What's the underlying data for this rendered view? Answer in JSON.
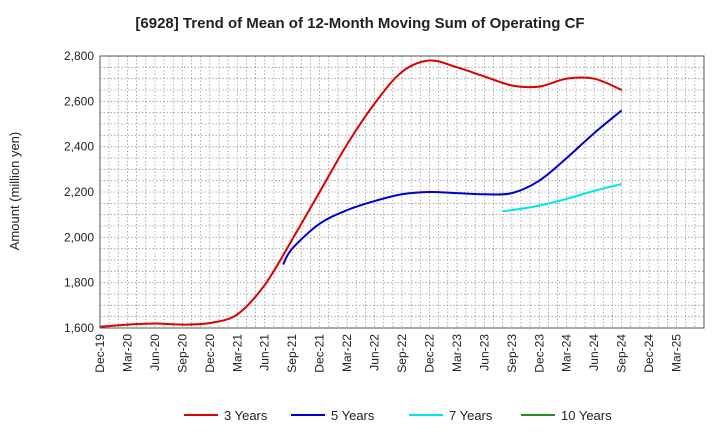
{
  "chart_data": {
    "type": "line",
    "title": "[6928]  Trend of Mean of 12-Month Moving Sum of Operating CF",
    "xlabel": "",
    "ylabel": "Amount (million yen)",
    "ylim": [
      1600,
      2800
    ],
    "yticks": [
      1600,
      1800,
      2000,
      2200,
      2400,
      2600,
      2800
    ],
    "ytick_labels": [
      "1,600",
      "1,800",
      "2,000",
      "2,200",
      "2,400",
      "2,600",
      "2,800"
    ],
    "categories": [
      "Dec-19",
      "Mar-20",
      "Jun-20",
      "Sep-20",
      "Dec-20",
      "Mar-21",
      "Jun-21",
      "Sep-21",
      "Dec-21",
      "Mar-22",
      "Jun-22",
      "Sep-22",
      "Dec-22",
      "Mar-23",
      "Jun-23",
      "Sep-23",
      "Dec-23",
      "Mar-24",
      "Jun-24",
      "Sep-24",
      "Dec-24",
      "Mar-25"
    ],
    "grid": true,
    "legend_position": "bottom",
    "series": [
      {
        "name": "3 Years",
        "color": "#dd0000",
        "points": [
          [
            0,
            1605
          ],
          [
            1,
            1615
          ],
          [
            2,
            1620
          ],
          [
            3,
            1615
          ],
          [
            4,
            1622
          ],
          [
            5,
            1660
          ],
          [
            6,
            1790
          ],
          [
            7,
            1990
          ],
          [
            8,
            2200
          ],
          [
            9,
            2410
          ],
          [
            10,
            2590
          ],
          [
            11,
            2730
          ],
          [
            12,
            2780
          ],
          [
            13,
            2750
          ],
          [
            14,
            2710
          ],
          [
            15,
            2670
          ],
          [
            16,
            2665
          ],
          [
            17,
            2700
          ],
          [
            18,
            2700
          ],
          [
            19,
            2650
          ]
        ]
      },
      {
        "name": "5 Years",
        "color": "#0000cc",
        "points": [
          [
            6.67,
            1880
          ],
          [
            7,
            1950
          ],
          [
            8,
            2060
          ],
          [
            9,
            2120
          ],
          [
            10,
            2160
          ],
          [
            11,
            2190
          ],
          [
            12,
            2200
          ],
          [
            13,
            2195
          ],
          [
            14,
            2190
          ],
          [
            15,
            2195
          ],
          [
            16,
            2250
          ],
          [
            17,
            2350
          ],
          [
            18,
            2460
          ],
          [
            19,
            2560
          ]
        ]
      },
      {
        "name": "7 Years",
        "color": "#00e5ee",
        "points": [
          [
            14.67,
            2115
          ],
          [
            15,
            2120
          ],
          [
            16,
            2140
          ],
          [
            17,
            2170
          ],
          [
            18,
            2205
          ],
          [
            19,
            2235
          ]
        ]
      },
      {
        "name": "10 Years",
        "color": "#228b22",
        "points": []
      }
    ]
  }
}
